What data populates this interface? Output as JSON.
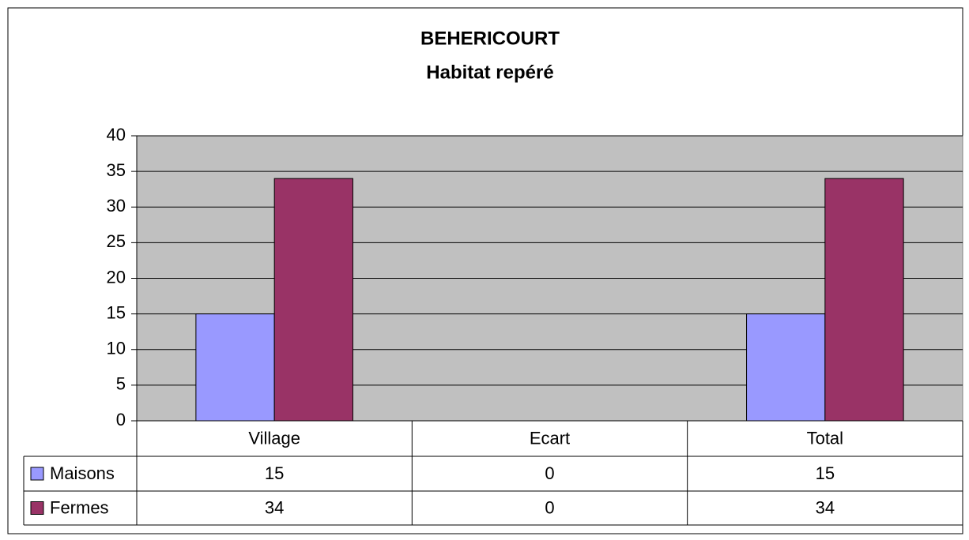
{
  "chart_data": {
    "type": "bar",
    "title": "BEHERICOURT",
    "subtitle": "Habitat repéré",
    "categories": [
      "Village",
      "Ecart",
      "Total"
    ],
    "series": [
      {
        "name": "Maisons",
        "color": "#9999ff",
        "values": [
          15,
          0,
          15
        ]
      },
      {
        "name": "Fermes",
        "color": "#993366",
        "values": [
          34,
          0,
          34
        ]
      }
    ],
    "ylim": [
      0,
      40
    ],
    "yticks": [
      0,
      5,
      10,
      15,
      20,
      25,
      30,
      35,
      40
    ],
    "grid": true,
    "legend": "data-table",
    "plot_background": "#c0c0c0"
  }
}
